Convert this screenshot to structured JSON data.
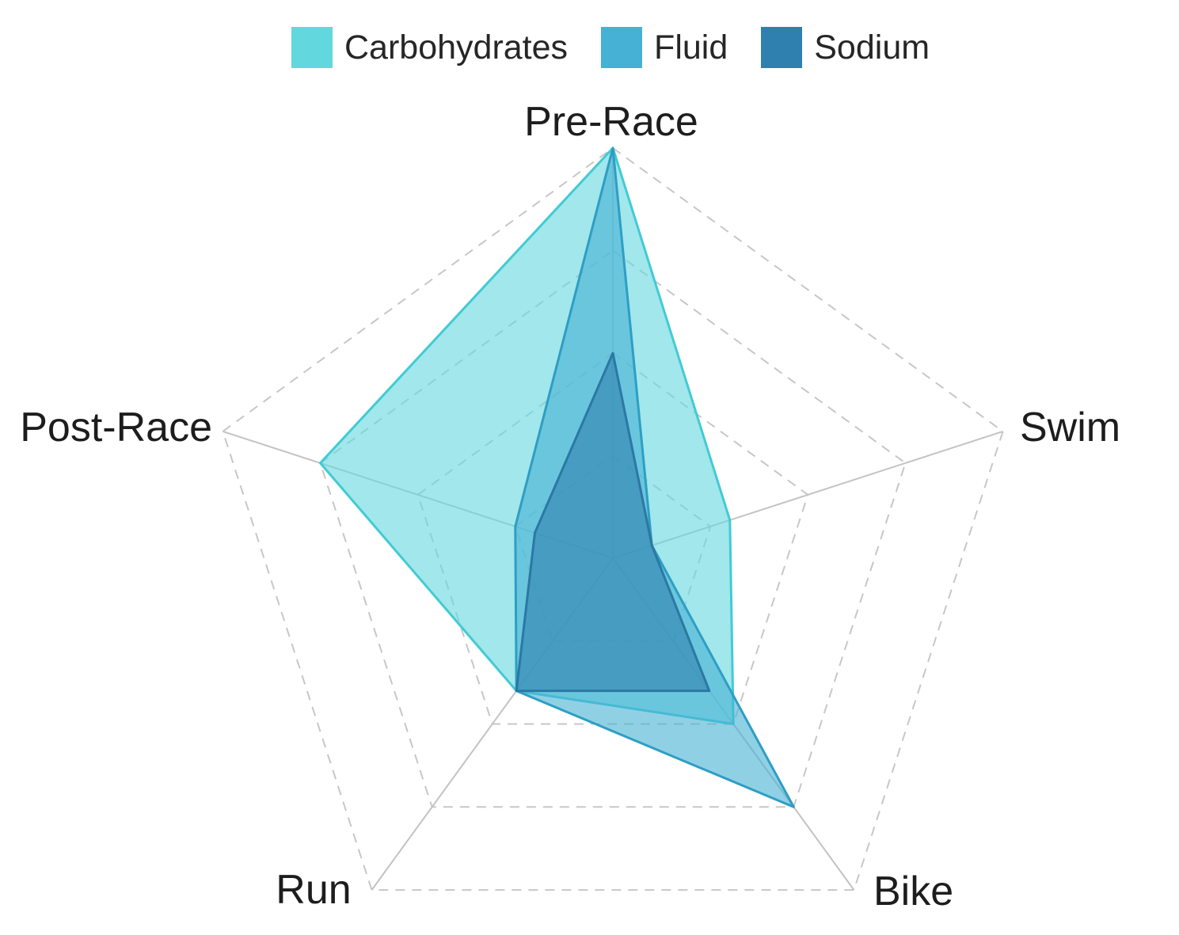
{
  "legend": {
    "items": [
      {
        "label": "Carbohydrates",
        "color": "#63D7DE"
      },
      {
        "label": "Fluid",
        "color": "#46B1D4"
      },
      {
        "label": "Sodium",
        "color": "#2F80AF"
      }
    ]
  },
  "axis_labels": {
    "pre_race": "Pre-Race",
    "swim": "Swim",
    "bike": "Bike",
    "run": "Run",
    "post_race": "Post-Race"
  },
  "chart_data": {
    "type": "radar",
    "categories": [
      "Pre-Race",
      "Swim",
      "Bike",
      "Run",
      "Post-Race"
    ],
    "series": [
      {
        "name": "Carbohydrates",
        "values": [
          100,
          30,
          50,
          40,
          75
        ],
        "color": "#63D7DE",
        "stroke": "#41CBD4"
      },
      {
        "name": "Fluid",
        "values": [
          100,
          10,
          75,
          40,
          25
        ],
        "color": "#46B1D4",
        "stroke": "#2E9EC4"
      },
      {
        "name": "Sodium",
        "values": [
          50,
          10,
          40,
          40,
          20
        ],
        "color": "#2F80AF",
        "stroke": "#2B78A5"
      }
    ],
    "rmax": 100,
    "ring_levels": [
      25,
      50,
      75,
      100
    ],
    "grid_style": "dashed",
    "grid_color": "#C7C7C7",
    "spoke_color": "#C3C3C3",
    "fill_opacity": 0.6,
    "legend_position": "top",
    "axis_tick_labels_shown": false
  }
}
